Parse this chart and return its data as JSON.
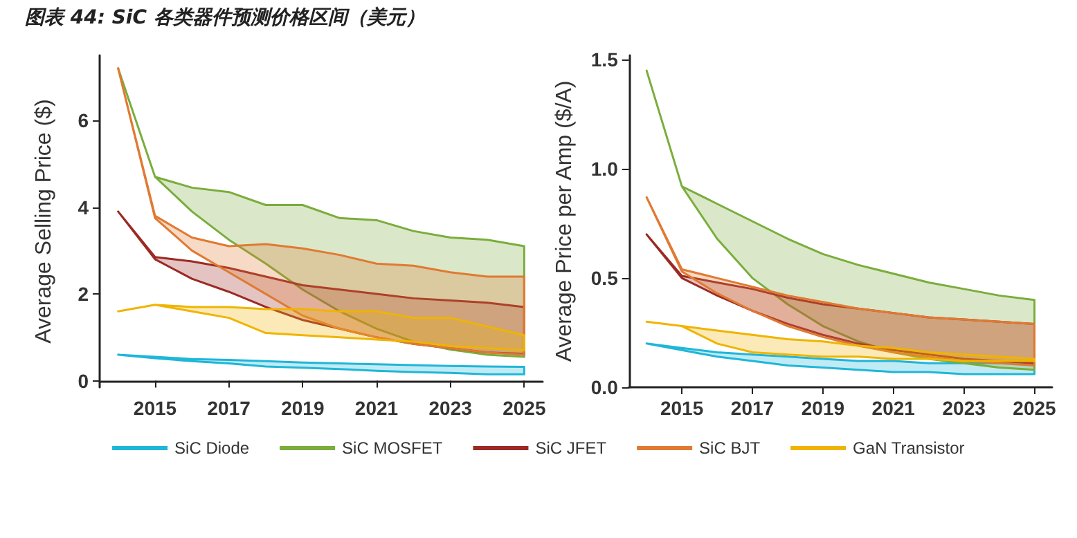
{
  "chart_data": [
    {
      "type": "line",
      "title": "图表 44: SiC 各类器件预测价格区间（美元）",
      "ylabel": "Average Selling Price ($)",
      "x": [
        2014,
        2015,
        2016,
        2017,
        2018,
        2019,
        2020,
        2021,
        2022,
        2023,
        2024,
        2025
      ],
      "xlim": [
        2013.5,
        2025.5
      ],
      "xticks": [
        2015,
        2017,
        2019,
        2021,
        2023,
        2025
      ],
      "ylim": [
        -0.15,
        7.5
      ],
      "yticks": [
        0,
        2,
        4,
        6
      ],
      "grid": false,
      "legend": "bottom",
      "series": [
        {
          "name": "SiC Diode",
          "color": "#1fb6d8",
          "values": [
            null,
            null,
            null,
            null,
            null,
            null,
            null,
            null,
            null,
            null,
            null,
            null
          ],
          "upper": [
            0.6,
            0.55,
            0.5,
            0.48,
            0.45,
            0.42,
            0.4,
            0.38,
            0.36,
            0.34,
            0.33,
            0.32
          ],
          "lower": [
            0.6,
            0.52,
            0.45,
            0.4,
            0.33,
            0.3,
            0.27,
            0.23,
            0.2,
            0.18,
            0.15,
            0.15
          ]
        },
        {
          "name": "SiC MOSFET",
          "color": "#7aad3c",
          "values": [
            null,
            null,
            null,
            null,
            null,
            null,
            null,
            null,
            null,
            null,
            null,
            null
          ],
          "upper": [
            7.2,
            4.7,
            4.45,
            4.35,
            4.05,
            4.05,
            3.75,
            3.7,
            3.45,
            3.3,
            3.25,
            3.1
          ],
          "lower": [
            7.2,
            4.7,
            3.9,
            3.25,
            2.7,
            2.1,
            1.6,
            1.2,
            0.9,
            0.72,
            0.6,
            0.55
          ]
        },
        {
          "name": "SiC JFET",
          "color": "#9b2a24",
          "values": [
            null,
            null,
            null,
            null,
            null,
            null,
            null,
            null,
            null,
            null,
            null,
            null
          ],
          "upper": [
            3.9,
            2.85,
            2.75,
            2.6,
            2.4,
            2.2,
            2.1,
            2.0,
            1.9,
            1.85,
            1.8,
            1.7
          ],
          "lower": [
            3.9,
            2.8,
            2.35,
            2.05,
            1.7,
            1.4,
            1.2,
            1.0,
            0.85,
            0.75,
            0.65,
            0.62
          ]
        },
        {
          "name": "SiC BJT",
          "color": "#e07a32",
          "values": [
            null,
            null,
            null,
            null,
            null,
            null,
            null,
            null,
            null,
            null,
            null,
            null
          ],
          "upper": [
            7.2,
            3.8,
            3.3,
            3.1,
            3.15,
            3.05,
            2.9,
            2.7,
            2.65,
            2.5,
            2.4,
            2.4
          ],
          "lower": [
            7.2,
            3.75,
            3.0,
            2.5,
            2.0,
            1.5,
            1.2,
            1.0,
            0.85,
            0.75,
            0.65,
            0.6
          ]
        },
        {
          "name": "GaN Transistor",
          "color": "#f0b400",
          "values": [
            null,
            null,
            null,
            null,
            null,
            null,
            null,
            null,
            null,
            null,
            null,
            null
          ],
          "upper": [
            1.6,
            1.75,
            1.7,
            1.7,
            1.65,
            1.65,
            1.6,
            1.6,
            1.45,
            1.45,
            1.25,
            1.05
          ],
          "lower": [
            1.6,
            1.75,
            1.6,
            1.45,
            1.1,
            1.05,
            1.0,
            0.95,
            0.9,
            0.8,
            0.75,
            0.7
          ]
        }
      ]
    },
    {
      "type": "line",
      "ylabel": "Average Price per Amp ($/A)",
      "x": [
        2014,
        2015,
        2016,
        2017,
        2018,
        2019,
        2020,
        2021,
        2022,
        2023,
        2024,
        2025
      ],
      "xlim": [
        2013.5,
        2025.5
      ],
      "xticks": [
        2015,
        2017,
        2019,
        2021,
        2023,
        2025
      ],
      "ylim": [
        0,
        1.52
      ],
      "yticks": [
        {
          "value": 0,
          "label": "0.0"
        },
        0.5,
        {
          "value": 1,
          "label": "1.0"
        },
        1.5
      ],
      "grid": false,
      "legend": false,
      "series": [
        {
          "color": "#1fb6d8",
          "values": [
            null,
            null,
            null,
            null,
            null,
            null,
            null,
            null,
            null,
            null,
            null,
            null
          ],
          "upper": [
            0.2,
            0.18,
            0.16,
            0.15,
            0.14,
            0.13,
            0.12,
            0.12,
            0.11,
            0.11,
            0.11,
            0.11
          ],
          "lower": [
            0.2,
            0.17,
            0.14,
            0.12,
            0.1,
            0.09,
            0.08,
            0.07,
            0.07,
            0.06,
            0.06,
            0.06
          ]
        },
        {
          "color": "#7aad3c",
          "values": [
            null,
            null,
            null,
            null,
            null,
            null,
            null,
            null,
            null,
            null,
            null,
            null
          ],
          "upper": [
            1.45,
            0.92,
            0.84,
            0.76,
            0.68,
            0.61,
            0.56,
            0.52,
            0.48,
            0.45,
            0.42,
            0.4
          ],
          "lower": [
            1.45,
            0.92,
            0.68,
            0.5,
            0.38,
            0.28,
            0.21,
            0.16,
            0.13,
            0.11,
            0.09,
            0.08
          ]
        },
        {
          "color": "#9b2a24",
          "values": [
            null,
            null,
            null,
            null,
            null,
            null,
            null,
            null,
            null,
            null,
            null,
            null
          ],
          "upper": [
            0.7,
            0.51,
            0.48,
            0.45,
            0.41,
            0.38,
            0.36,
            0.34,
            0.32,
            0.31,
            0.3,
            0.29
          ],
          "lower": [
            0.7,
            0.5,
            0.42,
            0.35,
            0.29,
            0.24,
            0.2,
            0.17,
            0.15,
            0.13,
            0.12,
            0.11
          ]
        },
        {
          "color": "#e07a32",
          "values": [
            null,
            null,
            null,
            null,
            null,
            null,
            null,
            null,
            null,
            null,
            null,
            null
          ],
          "upper": [
            0.87,
            0.54,
            0.5,
            0.46,
            0.42,
            0.39,
            0.36,
            0.34,
            0.32,
            0.31,
            0.3,
            0.29
          ],
          "lower": [
            0.87,
            0.53,
            0.43,
            0.35,
            0.28,
            0.23,
            0.19,
            0.16,
            0.14,
            0.12,
            0.11,
            0.1
          ]
        },
        {
          "color": "#f0b400",
          "values": [
            null,
            null,
            null,
            null,
            null,
            null,
            null,
            null,
            null,
            null,
            null,
            null
          ],
          "upper": [
            0.3,
            0.28,
            0.26,
            0.24,
            0.22,
            0.21,
            0.19,
            0.18,
            0.16,
            0.15,
            0.14,
            0.13
          ],
          "lower": [
            0.3,
            0.28,
            0.2,
            0.16,
            0.15,
            0.14,
            0.14,
            0.13,
            0.13,
            0.12,
            0.12,
            0.12
          ]
        }
      ]
    }
  ]
}
